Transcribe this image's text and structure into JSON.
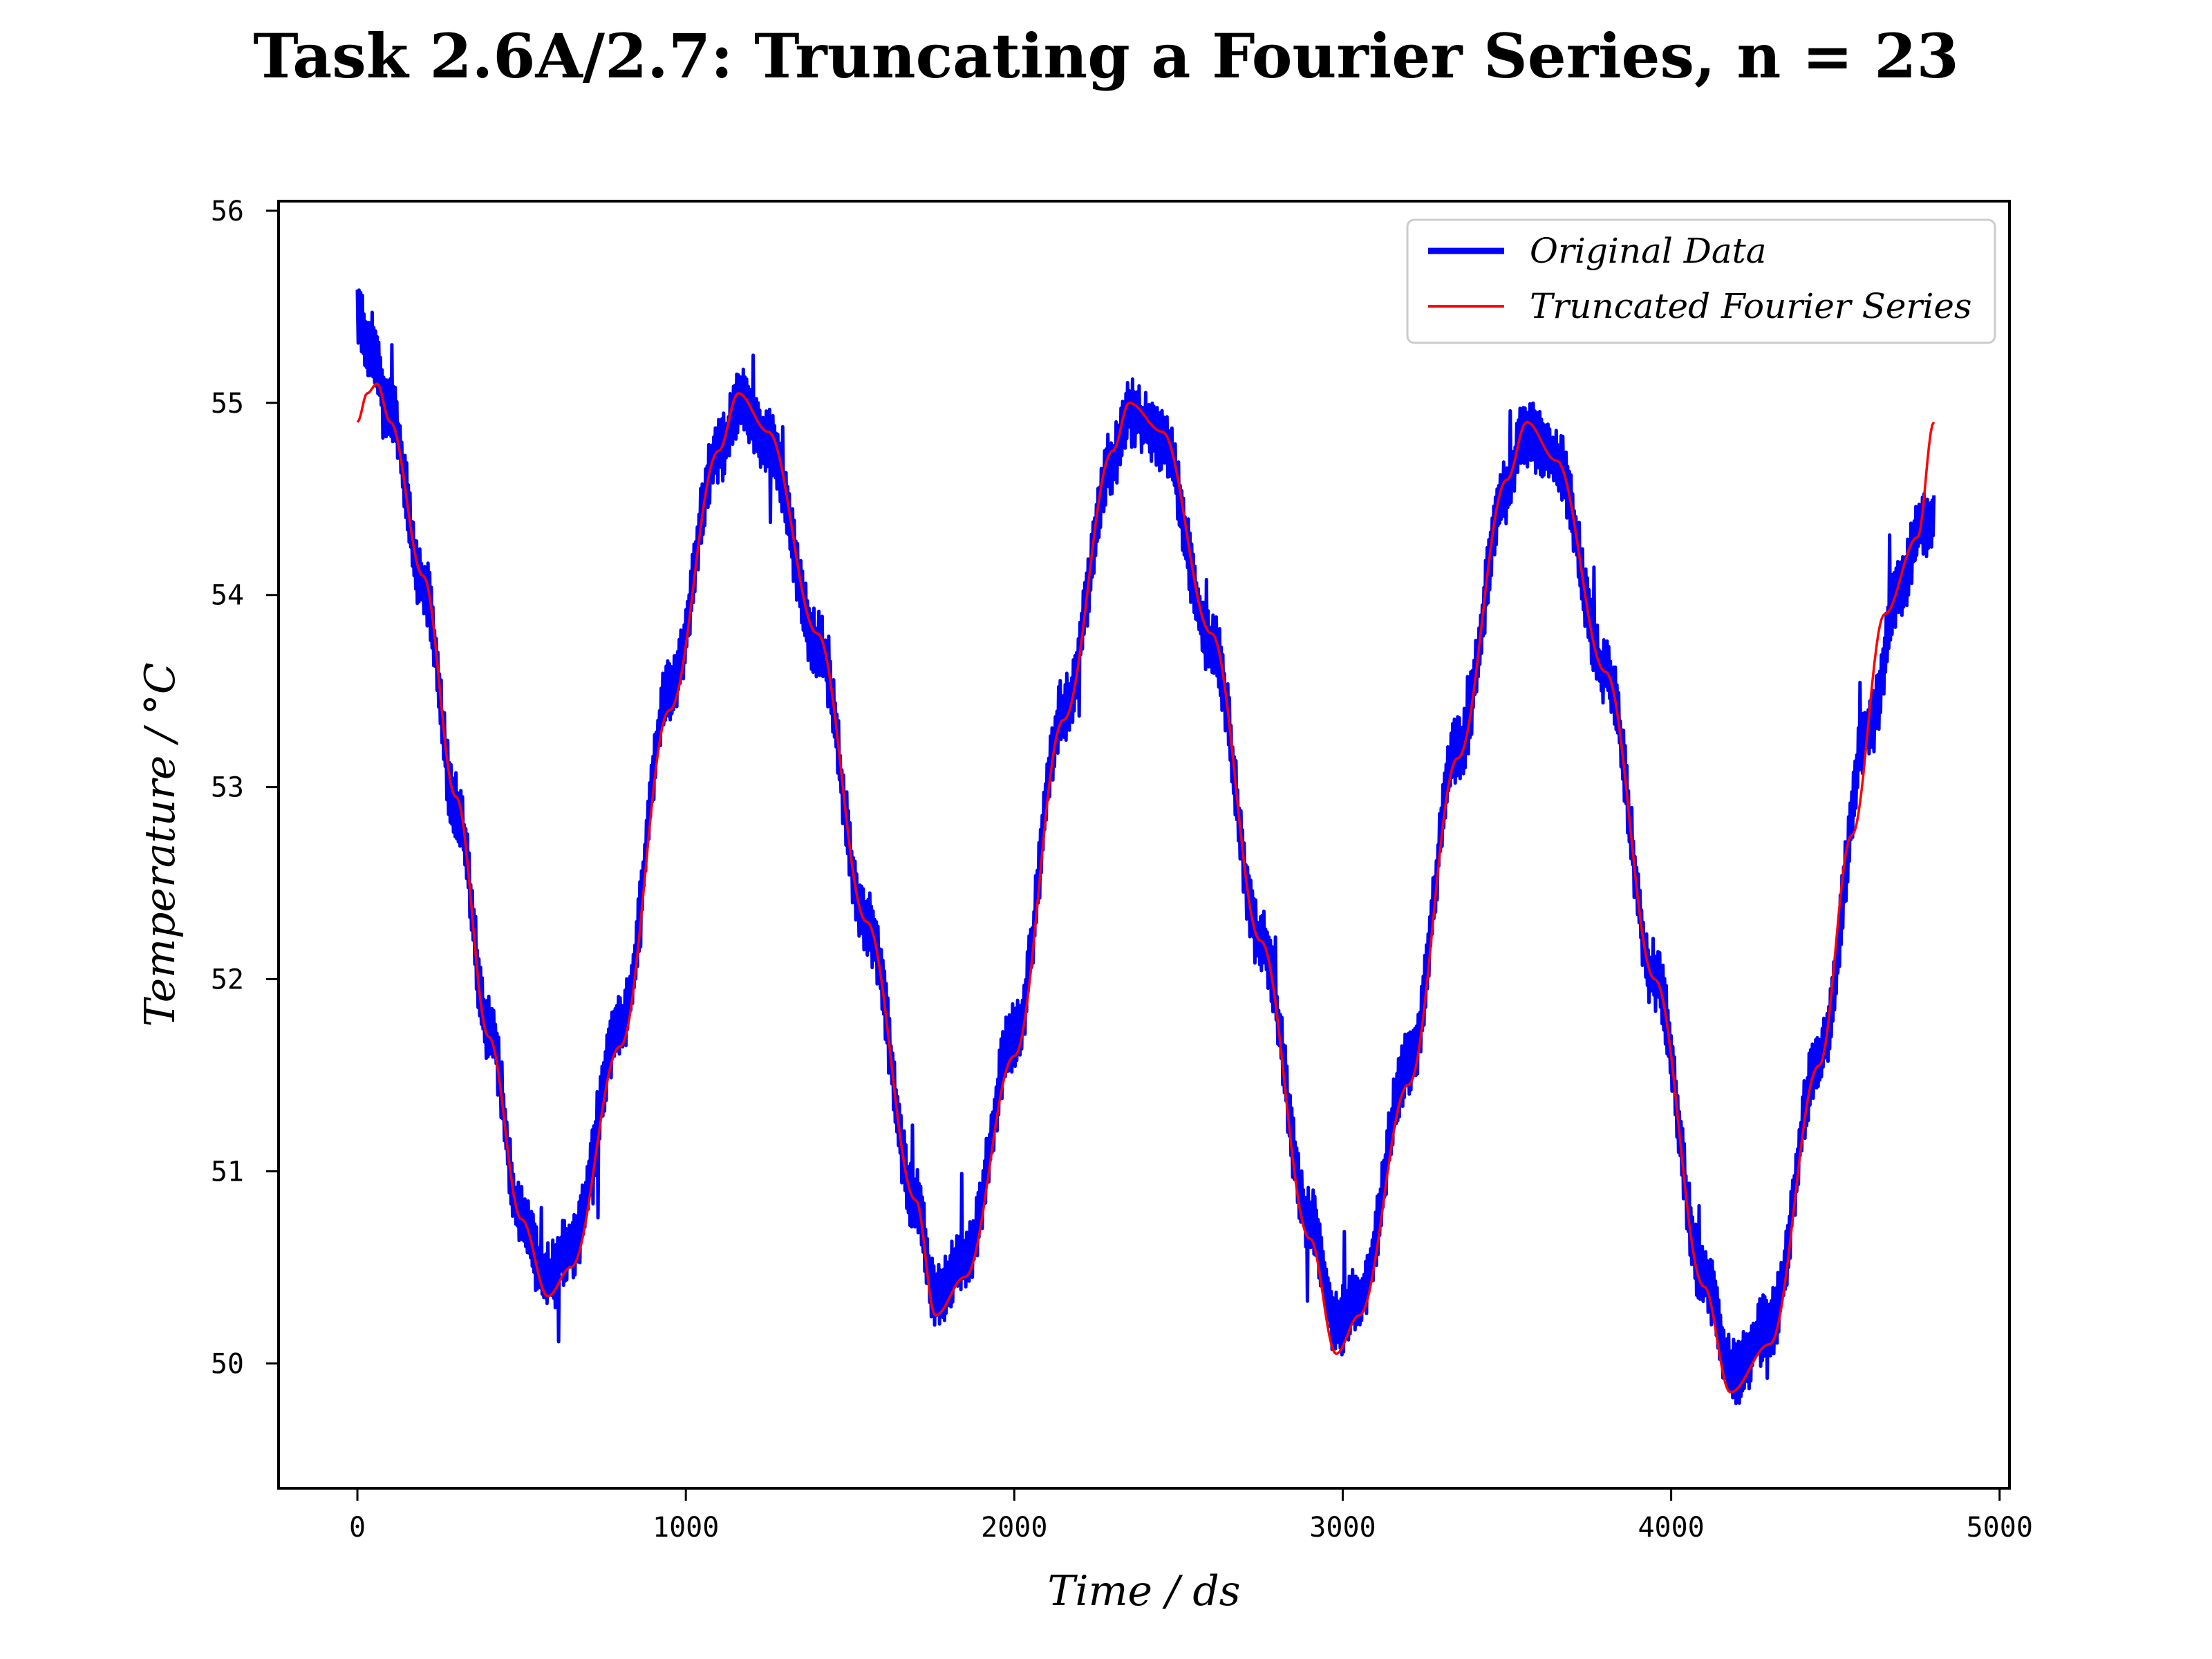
{
  "chart_data": {
    "type": "line",
    "title": "Task 2.6A/2.7: Truncating a Fourier Series, n = 23",
    "xlabel": "Time / ds",
    "ylabel": "Temperature / °C",
    "xlim": [
      -240,
      5030
    ],
    "ylim": [
      49.35,
      56.05
    ],
    "xticks": [
      0,
      1000,
      2000,
      3000,
      4000,
      5000
    ],
    "yticks": [
      50,
      51,
      52,
      53,
      54,
      55,
      56
    ],
    "grid": false,
    "legend_position": "top-right",
    "series": [
      {
        "name": "Original Data",
        "color": "#0000ff",
        "style": "noisy-band",
        "x": [
          0,
          40,
          100,
          200,
          300,
          400,
          500,
          570,
          650,
          800,
          950,
          1100,
          1170,
          1250,
          1400,
          1550,
          1700,
          1760,
          1850,
          2000,
          2150,
          2300,
          2350,
          2450,
          2600,
          2750,
          2900,
          2980,
          3050,
          3200,
          3350,
          3500,
          3550,
          3650,
          3800,
          3950,
          4100,
          4190,
          4300,
          4450,
          4600,
          4700,
          4760,
          4800
        ],
        "y": [
          55.45,
          55.3,
          54.95,
          54.05,
          52.9,
          51.75,
          50.75,
          50.45,
          50.6,
          51.75,
          53.5,
          54.75,
          55.0,
          54.8,
          53.75,
          52.3,
          50.85,
          50.35,
          50.55,
          51.7,
          53.4,
          54.7,
          54.95,
          54.8,
          53.75,
          52.2,
          50.75,
          50.2,
          50.35,
          51.55,
          53.2,
          54.55,
          54.85,
          54.7,
          53.6,
          52.0,
          50.45,
          49.95,
          50.2,
          51.6,
          53.3,
          54.05,
          54.35,
          54.4
        ],
        "noise_amplitude": 0.18
      },
      {
        "name": "Truncated Fourier Series",
        "color": "#ff0000",
        "style": "line",
        "x": [
          0,
          30,
          60,
          100,
          200,
          300,
          400,
          500,
          580,
          650,
          800,
          950,
          1100,
          1160,
          1250,
          1400,
          1550,
          1700,
          1760,
          1850,
          2000,
          2150,
          2300,
          2350,
          2450,
          2600,
          2750,
          2900,
          2980,
          3050,
          3200,
          3350,
          3500,
          3560,
          3650,
          3800,
          3950,
          4100,
          4180,
          4300,
          4450,
          4550,
          4650,
          4750,
          4800
        ],
        "y": [
          54.9,
          55.05,
          55.1,
          54.9,
          54.1,
          52.95,
          51.7,
          50.75,
          50.35,
          50.5,
          51.65,
          53.4,
          54.75,
          55.05,
          54.85,
          53.8,
          52.3,
          50.85,
          50.25,
          50.45,
          51.6,
          53.35,
          54.75,
          55.0,
          54.85,
          53.8,
          52.2,
          50.65,
          50.05,
          50.25,
          51.45,
          53.15,
          54.6,
          54.9,
          54.7,
          53.6,
          52.0,
          50.4,
          49.85,
          50.1,
          51.55,
          52.75,
          53.9,
          54.3,
          54.9
        ]
      }
    ]
  }
}
